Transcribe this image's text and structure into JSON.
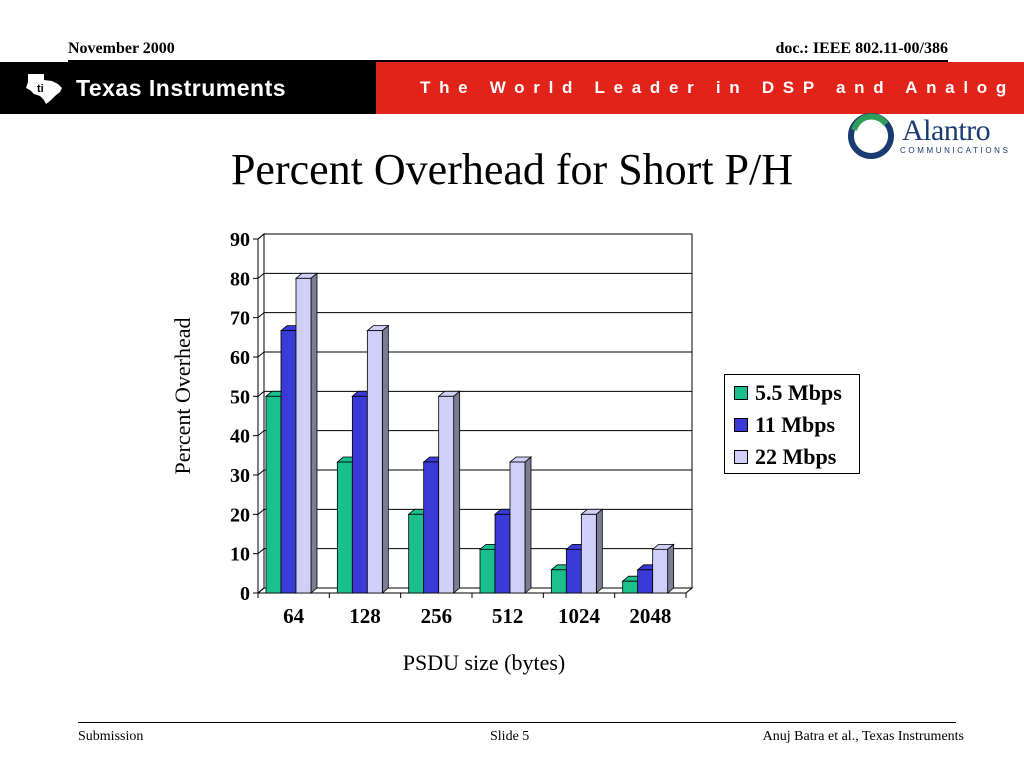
{
  "header": {
    "date": "November 2000",
    "doc": "doc.: IEEE 802.11-00/386"
  },
  "banner": {
    "company": "Texas Instruments",
    "tagline": "The World Leader in DSP and Analog",
    "colors": {
      "left_bg": "#000000",
      "right_bg": "#e2231a",
      "text": "#ffffff"
    }
  },
  "partner_logo": {
    "name": "Alantro",
    "sub": "COMMUNICATIONS",
    "color": "#1a3a72"
  },
  "slide_title": "Percent Overhead for Short P/H",
  "chart_data": {
    "type": "bar",
    "title": "",
    "xlabel": "PSDU size (bytes)",
    "ylabel": "Percent Overhead",
    "categories": [
      "64",
      "128",
      "256",
      "512",
      "1024",
      "2048"
    ],
    "ylim": [
      0,
      90
    ],
    "yticks": [
      0,
      10,
      20,
      30,
      40,
      50,
      60,
      70,
      80,
      90
    ],
    "grid": true,
    "three_d": true,
    "legend_position": "right",
    "series": [
      {
        "name": "5.5 Mbps",
        "color": "#1abf8c",
        "values": [
          50,
          33.3,
          20,
          11.1,
          5.9,
          3.0
        ]
      },
      {
        "name": "11 Mbps",
        "color": "#3a3ad6",
        "values": [
          66.7,
          50,
          33.3,
          20,
          11.1,
          5.9
        ]
      },
      {
        "name": "22 Mbps",
        "color": "#cfcff8",
        "values": [
          80,
          66.7,
          50,
          33.3,
          20,
          11.1
        ]
      }
    ]
  },
  "footer": {
    "left": "Submission",
    "center": "Slide 5",
    "right": "Anuj Batra et al., Texas Instruments"
  }
}
